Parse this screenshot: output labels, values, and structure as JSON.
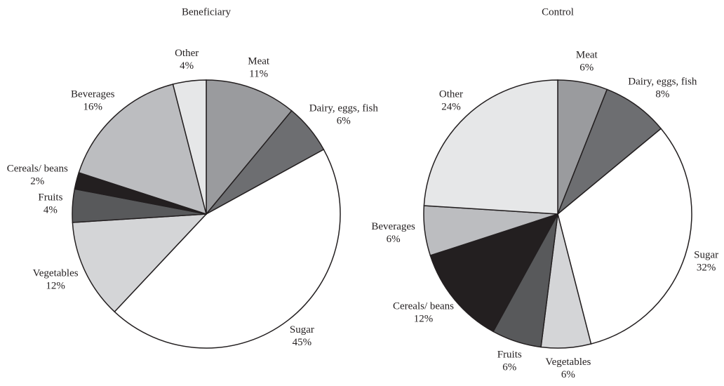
{
  "chart_data": [
    {
      "type": "pie",
      "title": "Beneficiary",
      "categories": [
        "Meat",
        "Dairy, eggs, fish",
        "Sugar",
        "Vegetables",
        "Fruits",
        "Cereals/ beans",
        "Beverages",
        "Other"
      ],
      "values": [
        11,
        6,
        45,
        12,
        4,
        2,
        16,
        4
      ],
      "value_labels": [
        "11%",
        "6%",
        "45%",
        "12%",
        "4%",
        "2%",
        "16%",
        "4%"
      ],
      "colors": [
        "#9a9b9e",
        "#6d6e71",
        "#ffffff",
        "#d4d5d7",
        "#58595b",
        "#231f20",
        "#bcbdc0",
        "#e6e7e8"
      ]
    },
    {
      "type": "pie",
      "title": "Control",
      "categories": [
        "Meat",
        "Dairy, eggs, fish",
        "Sugar",
        "Vegetables",
        "Fruits",
        "Cereals/ beans",
        "Beverages",
        "Other"
      ],
      "values": [
        6,
        8,
        32,
        6,
        6,
        12,
        6,
        24
      ],
      "value_labels": [
        "6%",
        "8%",
        "32%",
        "6%",
        "6%",
        "12%",
        "6%",
        "24%"
      ],
      "colors": [
        "#9a9b9e",
        "#6d6e71",
        "#ffffff",
        "#d4d5d7",
        "#58595b",
        "#231f20",
        "#bcbdc0",
        "#e6e7e8"
      ]
    }
  ]
}
